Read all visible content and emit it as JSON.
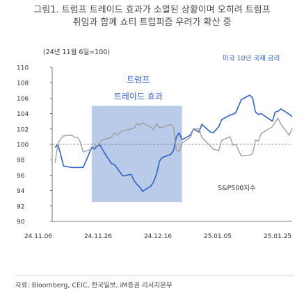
{
  "title_lines": [
    "그림1. 트럼프 트레이드 효과가 소멸된 상황이며 오히려 트럼프",
    "취임과 함께 쇼티 트럼피즘 우려가 확산 중"
  ],
  "source": "자료: Bloomberg, CEIC, 한국일보, iM증권 리서치본부",
  "chart_data": {
    "type": "line",
    "index_note": "(24년 11월 6일=100)",
    "x_ticks": [
      "24.11.06",
      "24.11.26",
      "24.12.16",
      "25.01.05",
      "25.01.25"
    ],
    "y_ticks": [
      90,
      92,
      94,
      96,
      98,
      100,
      102,
      104,
      106,
      108,
      110
    ],
    "ylim": [
      90,
      110
    ],
    "x_range": [
      "2024-11-04",
      "2025-01-28"
    ],
    "baseline": 100,
    "shaded_region": {
      "label_lines": [
        "트럼프",
        "트레이드 효과"
      ],
      "start": "2024-11-18",
      "end": "2024-12-20",
      "color": "#b9cbe8"
    },
    "series": [
      {
        "name": "미국 10년 국채 금리",
        "color": "#2f5fc8",
        "points": [
          [
            "2024-11-05",
            99.6
          ],
          [
            "2024-11-06",
            100.0
          ],
          [
            "2024-11-07",
            98.7
          ],
          [
            "2024-11-08",
            97.2
          ],
          [
            "2024-11-11",
            97.0
          ],
          [
            "2024-11-13",
            97.0
          ],
          [
            "2024-11-15",
            97.0
          ],
          [
            "2024-11-18",
            99.6
          ],
          [
            "2024-11-19",
            99.4
          ],
          [
            "2024-11-20",
            99.8
          ],
          [
            "2024-11-21",
            99.9
          ],
          [
            "2024-11-22",
            99.2
          ],
          [
            "2024-11-25",
            97.5
          ],
          [
            "2024-11-26",
            97.4
          ],
          [
            "2024-11-27",
            96.9
          ],
          [
            "2024-11-29",
            95.9
          ],
          [
            "2024-12-02",
            96.1
          ],
          [
            "2024-12-03",
            95.3
          ],
          [
            "2024-12-04",
            94.8
          ],
          [
            "2024-12-05",
            94.5
          ],
          [
            "2024-12-06",
            93.9
          ],
          [
            "2024-12-09",
            94.6
          ],
          [
            "2024-12-10",
            95.2
          ],
          [
            "2024-12-11",
            96.2
          ],
          [
            "2024-12-12",
            97.8
          ],
          [
            "2024-12-13",
            98.3
          ],
          [
            "2024-12-16",
            98.7
          ],
          [
            "2024-12-17",
            99.2
          ],
          [
            "2024-12-18",
            101.0
          ],
          [
            "2024-12-19",
            101.5
          ],
          [
            "2024-12-20",
            100.6
          ],
          [
            "2024-12-23",
            101.2
          ],
          [
            "2024-12-24",
            102.0
          ],
          [
            "2024-12-26",
            101.6
          ],
          [
            "2024-12-27",
            102.6
          ],
          [
            "2024-12-30",
            101.6
          ],
          [
            "2024-12-31",
            101.5
          ],
          [
            "2025-01-02",
            102.3
          ],
          [
            "2025-01-03",
            103.2
          ],
          [
            "2025-01-06",
            103.8
          ],
          [
            "2025-01-07",
            103.9
          ],
          [
            "2025-01-08",
            104.1
          ],
          [
            "2025-01-10",
            105.8
          ],
          [
            "2025-01-13",
            106.4
          ],
          [
            "2025-01-14",
            106.0
          ],
          [
            "2025-01-15",
            104.2
          ],
          [
            "2025-01-16",
            103.9
          ],
          [
            "2025-01-17",
            104.0
          ],
          [
            "2025-01-21",
            103.0
          ],
          [
            "2025-01-22",
            104.2
          ],
          [
            "2025-01-23",
            104.3
          ],
          [
            "2025-01-24",
            104.6
          ],
          [
            "2025-01-27",
            103.9
          ],
          [
            "2025-01-28",
            103.6
          ]
        ]
      },
      {
        "name": "S&P500지수",
        "color": "#9a9a9a",
        "points": [
          [
            "2024-11-05",
            97.6
          ],
          [
            "2024-11-06",
            100.0
          ],
          [
            "2024-11-07",
            100.7
          ],
          [
            "2024-11-08",
            101.1
          ],
          [
            "2024-11-11",
            101.2
          ],
          [
            "2024-11-12",
            100.9
          ],
          [
            "2024-11-13",
            100.9
          ],
          [
            "2024-11-14",
            100.3
          ],
          [
            "2024-11-15",
            99.0
          ],
          [
            "2024-11-18",
            99.4
          ],
          [
            "2024-11-19",
            99.8
          ],
          [
            "2024-11-20",
            99.8
          ],
          [
            "2024-11-21",
            100.3
          ],
          [
            "2024-11-22",
            100.6
          ],
          [
            "2024-11-25",
            100.9
          ],
          [
            "2024-11-26",
            101.5
          ],
          [
            "2024-11-27",
            101.2
          ],
          [
            "2024-11-29",
            101.8
          ],
          [
            "2024-12-02",
            102.0
          ],
          [
            "2024-12-03",
            102.1
          ],
          [
            "2024-12-04",
            102.7
          ],
          [
            "2024-12-05",
            102.5
          ],
          [
            "2024-12-06",
            102.8
          ],
          [
            "2024-12-09",
            102.2
          ],
          [
            "2024-12-10",
            101.9
          ],
          [
            "2024-12-11",
            102.7
          ],
          [
            "2024-12-12",
            102.2
          ],
          [
            "2024-12-13",
            102.2
          ],
          [
            "2024-12-16",
            102.6
          ],
          [
            "2024-12-17",
            102.2
          ],
          [
            "2024-12-18",
            99.2
          ],
          [
            "2024-12-19",
            99.1
          ],
          [
            "2024-12-20",
            100.2
          ],
          [
            "2024-12-23",
            100.9
          ],
          [
            "2024-12-24",
            102.0
          ],
          [
            "2024-12-26",
            102.0
          ],
          [
            "2024-12-27",
            100.9
          ],
          [
            "2024-12-30",
            99.8
          ],
          [
            "2024-12-31",
            99.4
          ],
          [
            "2025-01-02",
            99.2
          ],
          [
            "2025-01-03",
            100.5
          ],
          [
            "2025-01-06",
            101.0
          ],
          [
            "2025-01-07",
            99.9
          ],
          [
            "2025-01-08",
            100.0
          ],
          [
            "2025-01-10",
            98.5
          ],
          [
            "2025-01-13",
            98.6
          ],
          [
            "2025-01-14",
            98.8
          ],
          [
            "2025-01-15",
            100.6
          ],
          [
            "2025-01-16",
            100.4
          ],
          [
            "2025-01-17",
            101.4
          ],
          [
            "2025-01-21",
            102.3
          ],
          [
            "2025-01-22",
            102.9
          ],
          [
            "2025-01-23",
            103.4
          ],
          [
            "2025-01-24",
            102.6
          ],
          [
            "2025-01-27",
            101.2
          ],
          [
            "2025-01-28",
            102.1
          ]
        ]
      }
    ]
  }
}
